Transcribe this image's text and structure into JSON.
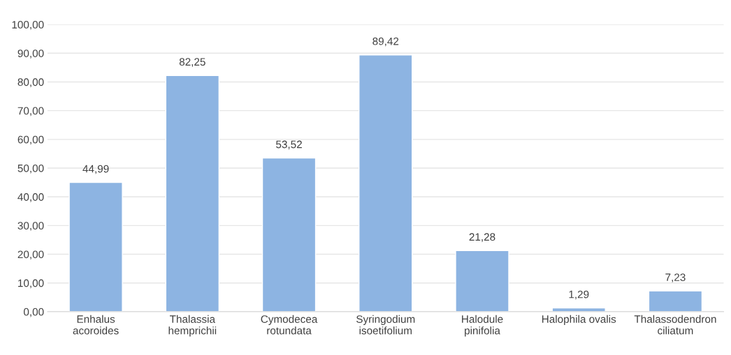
{
  "chart_data": {
    "type": "bar",
    "categories": [
      "Enhalus\nacoroides",
      "Thalassia\nhemprichii",
      "Cymodecea\nrotundata",
      "Syringodium\nisoetifolium",
      "Halodule\npinifolia",
      "Halophila ovalis",
      "Thalassodendron\nciliatum"
    ],
    "values": [
      44.99,
      82.25,
      53.52,
      89.42,
      21.28,
      1.29,
      7.23
    ],
    "value_labels": [
      "44,99",
      "82,25",
      "53,52",
      "89,42",
      "21,28",
      "1,29",
      "7,23"
    ],
    "color": "#8db4e2",
    "ylim": [
      0,
      100
    ],
    "yticks": [
      {
        "value": 0,
        "label": "0,00"
      },
      {
        "value": 10,
        "label": "10,00"
      },
      {
        "value": 20,
        "label": "20,00"
      },
      {
        "value": 30,
        "label": "30,00"
      },
      {
        "value": 40,
        "label": "40,00"
      },
      {
        "value": 50,
        "label": "50,00"
      },
      {
        "value": 60,
        "label": "60,00"
      },
      {
        "value": 70,
        "label": "70,00"
      },
      {
        "value": 80,
        "label": "80,00"
      },
      {
        "value": 90,
        "label": "90,00"
      },
      {
        "value": 100,
        "label": "100,00"
      }
    ],
    "grid": "y"
  }
}
